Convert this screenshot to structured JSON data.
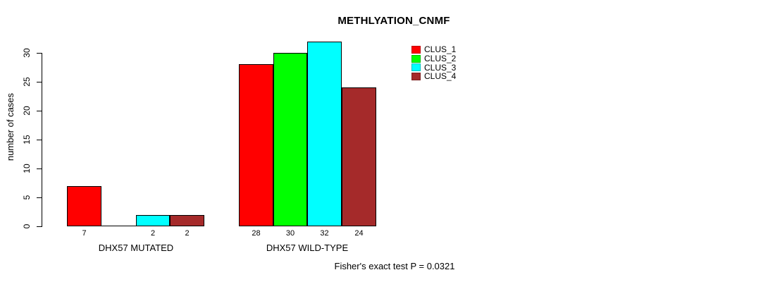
{
  "title": "METHLYATION_CNMF",
  "footer": "Fisher's exact test P = 0.0321",
  "y_axis": {
    "label": "number of cases",
    "ticks": [
      0,
      5,
      10,
      15,
      20,
      25,
      30
    ]
  },
  "legend": {
    "items": [
      {
        "label": "CLUS_1",
        "color": "#ff0000"
      },
      {
        "label": "CLUS_2",
        "color": "#00ff00"
      },
      {
        "label": "CLUS_3",
        "color": "#00ffff"
      },
      {
        "label": "CLUS_4",
        "color": "#a52a2a"
      }
    ]
  },
  "chart_data": {
    "type": "bar",
    "title": "METHLYATION_CNMF",
    "xlabel": "",
    "ylabel": "number of cases",
    "ylim": [
      0,
      30
    ],
    "y_ticks": [
      0,
      5,
      10,
      15,
      20,
      25,
      30
    ],
    "grid": false,
    "legend_position": "top-right",
    "categories": [
      "DHX57 MUTATED",
      "DHX57 WILD-TYPE"
    ],
    "series": [
      {
        "name": "CLUS_1",
        "color": "#ff0000",
        "values": [
          7,
          28
        ]
      },
      {
        "name": "CLUS_2",
        "color": "#00ff00",
        "values": [
          0,
          30
        ]
      },
      {
        "name": "CLUS_3",
        "color": "#00ffff",
        "values": [
          2,
          32
        ]
      },
      {
        "name": "CLUS_4",
        "color": "#a52a2a",
        "values": [
          2,
          24
        ]
      }
    ],
    "bar_value_labels": [
      [
        "7",
        "",
        "2",
        "2"
      ],
      [
        "28",
        "30",
        "32",
        "24"
      ]
    ],
    "annotation": "Fisher's exact test P = 0.0321"
  }
}
